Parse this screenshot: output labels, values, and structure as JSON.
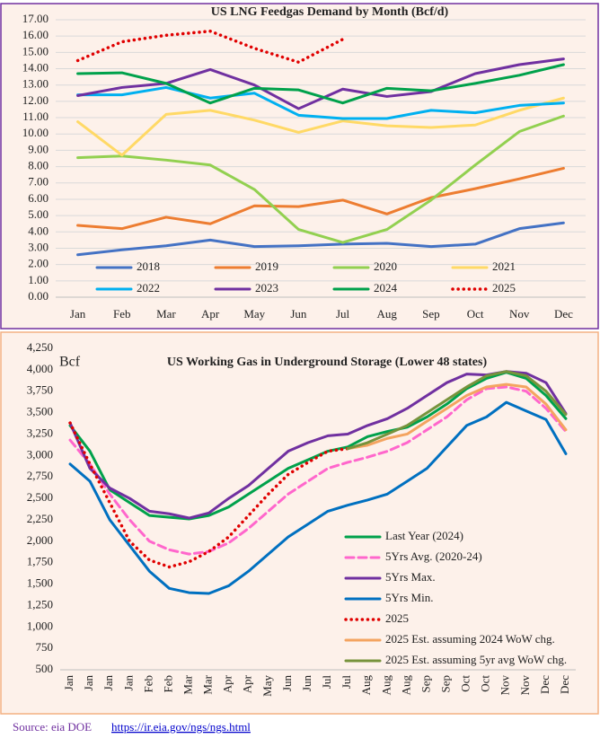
{
  "chart_data": [
    {
      "type": "line",
      "title": "US LNG Feedgas Demand by Month (Bcf/d)",
      "categories": [
        "Jan",
        "Feb",
        "Mar",
        "Apr",
        "May",
        "Jun",
        "Jul",
        "Aug",
        "Sep",
        "Oct",
        "Nov",
        "Dec"
      ],
      "ylim": [
        0,
        17
      ],
      "yticks": [
        {
          "value": 0,
          "label": "0.00"
        },
        {
          "value": 1,
          "label": "1.00"
        },
        {
          "value": 2,
          "label": "2.00"
        },
        {
          "value": 3,
          "label": "3.00"
        },
        {
          "value": 4,
          "label": "4.00"
        },
        {
          "value": 5,
          "label": "5.00"
        },
        {
          "value": 6,
          "label": "6.00"
        },
        {
          "value": 7,
          "label": "7.00"
        },
        {
          "value": 8,
          "label": "8.00"
        },
        {
          "value": 9,
          "label": "9.00"
        },
        {
          "value": 10,
          "label": "10.00"
        },
        {
          "value": 11,
          "label": "11.00"
        },
        {
          "value": 12,
          "label": "12.00"
        },
        {
          "value": 13,
          "label": "13.00"
        },
        {
          "value": 14,
          "label": "14.00"
        },
        {
          "value": 15,
          "label": "15.00"
        },
        {
          "value": 16,
          "label": "16.00"
        },
        {
          "value": 17,
          "label": "17.00"
        }
      ],
      "grid": true,
      "series": [
        {
          "name": "2018",
          "color": "#4472c4",
          "values": [
            2.6,
            2.9,
            3.15,
            3.5,
            3.1,
            3.15,
            3.25,
            3.3,
            3.1,
            3.25,
            4.2,
            4.55
          ]
        },
        {
          "name": "2019",
          "color": "#ed7d31",
          "values": [
            4.4,
            4.2,
            4.9,
            4.5,
            5.6,
            5.55,
            5.95,
            5.1,
            6.1,
            6.65,
            7.25,
            7.9
          ]
        },
        {
          "name": "2020",
          "color": "#92d050",
          "values": [
            8.55,
            8.65,
            8.4,
            8.1,
            6.6,
            4.15,
            3.35,
            4.15,
            5.95,
            8.1,
            10.15,
            11.1
          ]
        },
        {
          "name": "2021",
          "color": "#ffd966",
          "values": [
            10.75,
            8.7,
            11.2,
            11.45,
            10.85,
            10.1,
            10.8,
            10.5,
            10.4,
            10.55,
            11.45,
            12.2
          ]
        },
        {
          "name": "2022",
          "color": "#00b0f0",
          "values": [
            12.4,
            12.4,
            12.85,
            12.2,
            12.5,
            11.15,
            10.95,
            10.95,
            11.45,
            11.3,
            11.75,
            11.9
          ]
        },
        {
          "name": "2023",
          "color": "#7030a0",
          "values": [
            12.35,
            12.85,
            13.1,
            13.95,
            13.0,
            11.55,
            12.75,
            12.3,
            12.6,
            13.7,
            14.25,
            14.6
          ]
        },
        {
          "name": "2024",
          "color": "#00a14b",
          "values": [
            13.7,
            13.75,
            13.1,
            11.9,
            12.8,
            12.7,
            11.9,
            12.8,
            12.65,
            13.1,
            13.6,
            14.25
          ]
        },
        {
          "name": "2025",
          "color": "#e00000",
          "dash": "dotted",
          "values": [
            14.5,
            15.65,
            16.05,
            16.3,
            15.25,
            14.4,
            15.8,
            null,
            null,
            null,
            null,
            null
          ]
        }
      ]
    },
    {
      "type": "line",
      "title": "US Working Gas in Underground Storage (Lower 48 states)",
      "y_label": "Bcf",
      "categories": [
        "Jan",
        "Jan",
        "Jan",
        "Jan",
        "Feb",
        "Feb",
        "Mar",
        "Mar",
        "Apr",
        "Apr",
        "May",
        "Jun",
        "Jun",
        "Jul",
        "Jul",
        "Aug",
        "Aug",
        "Aug",
        "Sep",
        "Sep",
        "Oct",
        "Oct",
        "Nov",
        "Nov",
        "Dec",
        "Dec"
      ],
      "ylim": [
        500,
        4250
      ],
      "yticks": [
        500,
        750,
        {
          "value": 1000,
          "label": "1,000"
        },
        {
          "value": 1250,
          "label": "1,250"
        },
        {
          "value": 1500,
          "label": "1,500"
        },
        {
          "value": 1750,
          "label": "1,750"
        },
        {
          "value": 2000,
          "label": "2,000"
        },
        {
          "value": 2250,
          "label": "2,250"
        },
        {
          "value": 2500,
          "label": "2,500"
        },
        {
          "value": 2750,
          "label": "2,750"
        },
        {
          "value": 3000,
          "label": "3,000"
        },
        {
          "value": 3250,
          "label": "3,250"
        },
        {
          "value": 3500,
          "label": "3,500"
        },
        {
          "value": 3750,
          "label": "3,750"
        },
        {
          "value": 4000,
          "label": "4,000"
        },
        {
          "value": 4250,
          "label": "4,250"
        }
      ],
      "grid": false,
      "series": [
        {
          "name": "Last Year (2024)",
          "color": "#00a14b",
          "values": [
            3350,
            3050,
            2600,
            2450,
            2300,
            2280,
            2260,
            2300,
            2400,
            2550,
            2700,
            2850,
            2950,
            3050,
            3100,
            3220,
            3280,
            3330,
            3450,
            3600,
            3780,
            3900,
            3970,
            3900,
            3700,
            3430
          ]
        },
        {
          "name": "5Yrs Avg. (2020-24)",
          "color": "#ff66cc",
          "dash": "dashed",
          "values": [
            3180,
            2900,
            2550,
            2250,
            2000,
            1900,
            1850,
            1880,
            1980,
            2150,
            2350,
            2550,
            2700,
            2850,
            2920,
            2980,
            3050,
            3150,
            3300,
            3450,
            3650,
            3780,
            3800,
            3750,
            3550,
            3280
          ]
        },
        {
          "name": "5Yrs Max.",
          "color": "#7030a0",
          "values": [
            3380,
            2850,
            2620,
            2500,
            2350,
            2320,
            2270,
            2330,
            2500,
            2650,
            2850,
            3050,
            3150,
            3230,
            3250,
            3350,
            3430,
            3550,
            3700,
            3850,
            3950,
            3940,
            3980,
            3960,
            3850,
            3490
          ]
        },
        {
          "name": "5Yrs Min.",
          "color": "#0070c0",
          "values": [
            2900,
            2700,
            2250,
            1950,
            1650,
            1450,
            1400,
            1390,
            1480,
            1650,
            1850,
            2050,
            2200,
            2350,
            2420,
            2480,
            2550,
            2700,
            2850,
            3100,
            3350,
            3450,
            3620,
            3520,
            3420,
            3020
          ]
        },
        {
          "name": "2025",
          "color": "#e00000",
          "dash": "dotted",
          "values": [
            3380,
            2900,
            2450,
            2000,
            1780,
            1700,
            1760,
            1880,
            2050,
            2300,
            2550,
            2780,
            2920,
            3050,
            3080,
            null,
            null,
            null,
            null,
            null,
            null,
            null,
            null,
            null,
            null,
            null
          ]
        },
        {
          "name": "2025 Est. assuming 2024 WoW chg.",
          "color": "#f4a460",
          "values": [
            null,
            null,
            null,
            null,
            null,
            null,
            null,
            null,
            null,
            null,
            null,
            null,
            null,
            null,
            3080,
            3120,
            3200,
            3250,
            3400,
            3550,
            3700,
            3800,
            3830,
            3800,
            3600,
            3300
          ]
        },
        {
          "name": "2025 Est. assuming 5yr avg WoW chg.",
          "color": "#77933c",
          "values": [
            null,
            null,
            null,
            null,
            null,
            null,
            null,
            null,
            null,
            null,
            null,
            null,
            null,
            null,
            3080,
            3150,
            3250,
            3350,
            3500,
            3650,
            3800,
            3930,
            3980,
            3930,
            3750,
            3480
          ]
        }
      ]
    }
  ],
  "source": {
    "text": "Source: eia DOE",
    "url": "https://ir.eia.gov/ngs/ngs.html"
  }
}
